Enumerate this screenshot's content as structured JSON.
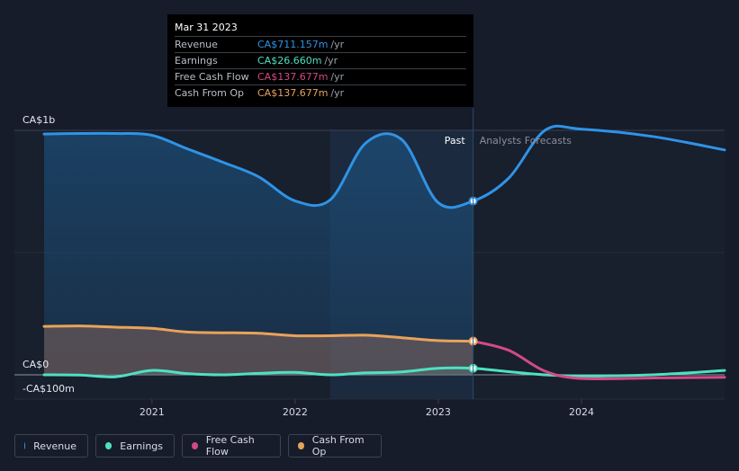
{
  "tooltip": {
    "date": "Mar 31 2023",
    "rows": [
      {
        "label": "Revenue",
        "value": "CA$711.157m",
        "unit": "/yr",
        "color": "#2f93e6"
      },
      {
        "label": "Earnings",
        "value": "CA$26.660m",
        "unit": "/yr",
        "color": "#4fe0c2"
      },
      {
        "label": "Free Cash Flow",
        "value": "CA$137.677m",
        "unit": "/yr",
        "color": "#d24a85"
      },
      {
        "label": "Cash From Op",
        "value": "CA$137.677m",
        "unit": "/yr",
        "color": "#e8a35a"
      }
    ]
  },
  "regions": {
    "past": "Past",
    "forecast": "Analysts Forecasts"
  },
  "legend": [
    {
      "label": "Revenue",
      "color": "#2f93e6"
    },
    {
      "label": "Earnings",
      "color": "#4fe0c2"
    },
    {
      "label": "Free Cash Flow",
      "color": "#d24a85"
    },
    {
      "label": "Cash From Op",
      "color": "#e8a35a"
    }
  ],
  "chart_data": {
    "type": "area",
    "y_unit": "CA$ millions",
    "y_tick_labels": [
      {
        "value": 1000,
        "label": "CA$1b"
      },
      {
        "value": 0,
        "label": "CA$0"
      },
      {
        "value": -100,
        "label": "-CA$100m"
      }
    ],
    "ylim": [
      -100,
      1000
    ],
    "x_tick_labels": [
      "2021",
      "2022",
      "2023",
      "2024"
    ],
    "xlim": [
      "2020-04-01",
      "2024-12-31"
    ],
    "past_end": "2023-03-31",
    "highlight_start": "2022-03-31",
    "grid": true,
    "series": [
      {
        "name": "Revenue",
        "color": "#2f93e6",
        "points": [
          [
            "2020-04-01",
            985
          ],
          [
            "2020-06-30",
            987
          ],
          [
            "2020-09-30",
            987
          ],
          [
            "2020-12-31",
            980
          ],
          [
            "2021-03-31",
            925
          ],
          [
            "2021-06-30",
            870
          ],
          [
            "2021-09-30",
            810
          ],
          [
            "2021-12-31",
            712
          ],
          [
            "2022-03-31",
            715
          ],
          [
            "2022-06-30",
            948
          ],
          [
            "2022-09-30",
            962
          ],
          [
            "2022-12-31",
            705
          ],
          [
            "2023-03-31",
            711
          ],
          [
            "2023-06-30",
            805
          ],
          [
            "2023-09-30",
            1000
          ],
          [
            "2023-12-31",
            1005
          ],
          [
            "2024-06-30",
            975
          ],
          [
            "2024-12-31",
            920
          ]
        ]
      },
      {
        "name": "Earnings",
        "color": "#4fe0c2",
        "points": [
          [
            "2020-04-01",
            0
          ],
          [
            "2020-06-30",
            -1
          ],
          [
            "2020-09-30",
            -8
          ],
          [
            "2020-12-31",
            18
          ],
          [
            "2021-03-31",
            5
          ],
          [
            "2021-06-30",
            0
          ],
          [
            "2021-09-30",
            6
          ],
          [
            "2021-12-31",
            10
          ],
          [
            "2022-03-31",
            0
          ],
          [
            "2022-06-30",
            8
          ],
          [
            "2022-09-30",
            12
          ],
          [
            "2022-12-31",
            27
          ],
          [
            "2023-03-31",
            26.66
          ],
          [
            "2023-06-30",
            13
          ],
          [
            "2023-09-30",
            0
          ],
          [
            "2023-12-31",
            -5
          ],
          [
            "2024-06-30",
            0
          ],
          [
            "2024-12-31",
            18
          ]
        ]
      },
      {
        "name": "Free Cash Flow",
        "color": "#d24a85",
        "points": [
          [
            "2023-03-31",
            137.677
          ],
          [
            "2023-06-30",
            100
          ],
          [
            "2023-09-30",
            15
          ],
          [
            "2023-12-31",
            -15
          ],
          [
            "2024-06-30",
            -13
          ],
          [
            "2024-12-31",
            -10
          ]
        ]
      },
      {
        "name": "Cash From Op",
        "color": "#e8a35a",
        "points": [
          [
            "2020-04-01",
            198
          ],
          [
            "2020-06-30",
            200
          ],
          [
            "2020-09-30",
            195
          ],
          [
            "2020-12-31",
            190
          ],
          [
            "2021-03-31",
            175
          ],
          [
            "2021-06-30",
            172
          ],
          [
            "2021-09-30",
            170
          ],
          [
            "2021-12-31",
            160
          ],
          [
            "2022-03-31",
            160
          ],
          [
            "2022-06-30",
            162
          ],
          [
            "2022-09-30",
            152
          ],
          [
            "2022-12-31",
            140
          ],
          [
            "2023-03-31",
            137.677
          ]
        ]
      }
    ]
  }
}
